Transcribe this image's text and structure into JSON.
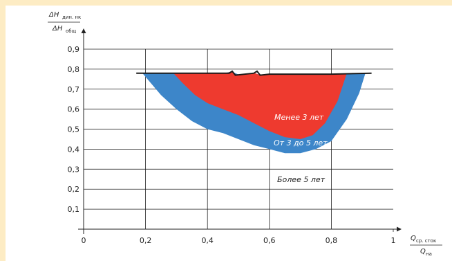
{
  "colors": {
    "background": "#fdecc4",
    "red_zone": "#ee3a2f",
    "blue_zone": "#3d86c9",
    "top_line": "#1a1a1a",
    "grid": "#222222"
  },
  "chart_data": {
    "type": "area",
    "xlim": [
      0,
      1
    ],
    "ylim": [
      0,
      0.9
    ],
    "x_ticks": [
      "0",
      "0,2",
      "0,4",
      "0,6",
      "0,8",
      "1"
    ],
    "y_ticks": [
      "0,1",
      "0,2",
      "0,3",
      "0,4",
      "0,5",
      "0,6",
      "0,7",
      "0,8",
      "0,9"
    ],
    "grid": true,
    "y_axis_title": {
      "numerator_main": "ΔH",
      "numerator_sub": "дин. нк",
      "denominator_main": "ΔH",
      "denominator_sub": "общ"
    },
    "x_axis_title": {
      "numerator_main": "Q",
      "numerator_sub": "ср. сток",
      "denominator_main": "Q",
      "denominator_sub": "на"
    },
    "upper_boundary": {
      "x": [
        0.17,
        0.3,
        0.47,
        0.48,
        0.49,
        0.55,
        0.56,
        0.57,
        0.6,
        0.7,
        0.8,
        0.93
      ],
      "y": [
        0.78,
        0.78,
        0.78,
        0.79,
        0.77,
        0.78,
        0.79,
        0.77,
        0.775,
        0.775,
        0.775,
        0.78
      ]
    },
    "series": [
      {
        "label": "От 3 до 5 лет",
        "color": "#3d86c9",
        "x": [
          0.19,
          0.25,
          0.3,
          0.35,
          0.4,
          0.45,
          0.5,
          0.55,
          0.6,
          0.65,
          0.7,
          0.75,
          0.8,
          0.85,
          0.89,
          0.91
        ],
        "y": [
          0.78,
          0.67,
          0.6,
          0.54,
          0.5,
          0.48,
          0.45,
          0.42,
          0.4,
          0.38,
          0.38,
          0.4,
          0.44,
          0.55,
          0.68,
          0.78
        ]
      },
      {
        "label": "Менее 3 лет",
        "color": "#ee3a2f",
        "x": [
          0.29,
          0.32,
          0.36,
          0.4,
          0.45,
          0.5,
          0.55,
          0.6,
          0.65,
          0.7,
          0.74,
          0.78,
          0.82,
          0.85
        ],
        "y": [
          0.78,
          0.73,
          0.67,
          0.63,
          0.6,
          0.57,
          0.53,
          0.49,
          0.46,
          0.45,
          0.47,
          0.53,
          0.64,
          0.78
        ]
      }
    ],
    "zone_labels": [
      "Менее 3 лет",
      "От 3 до 5 лет",
      "Более 5 лет"
    ]
  }
}
